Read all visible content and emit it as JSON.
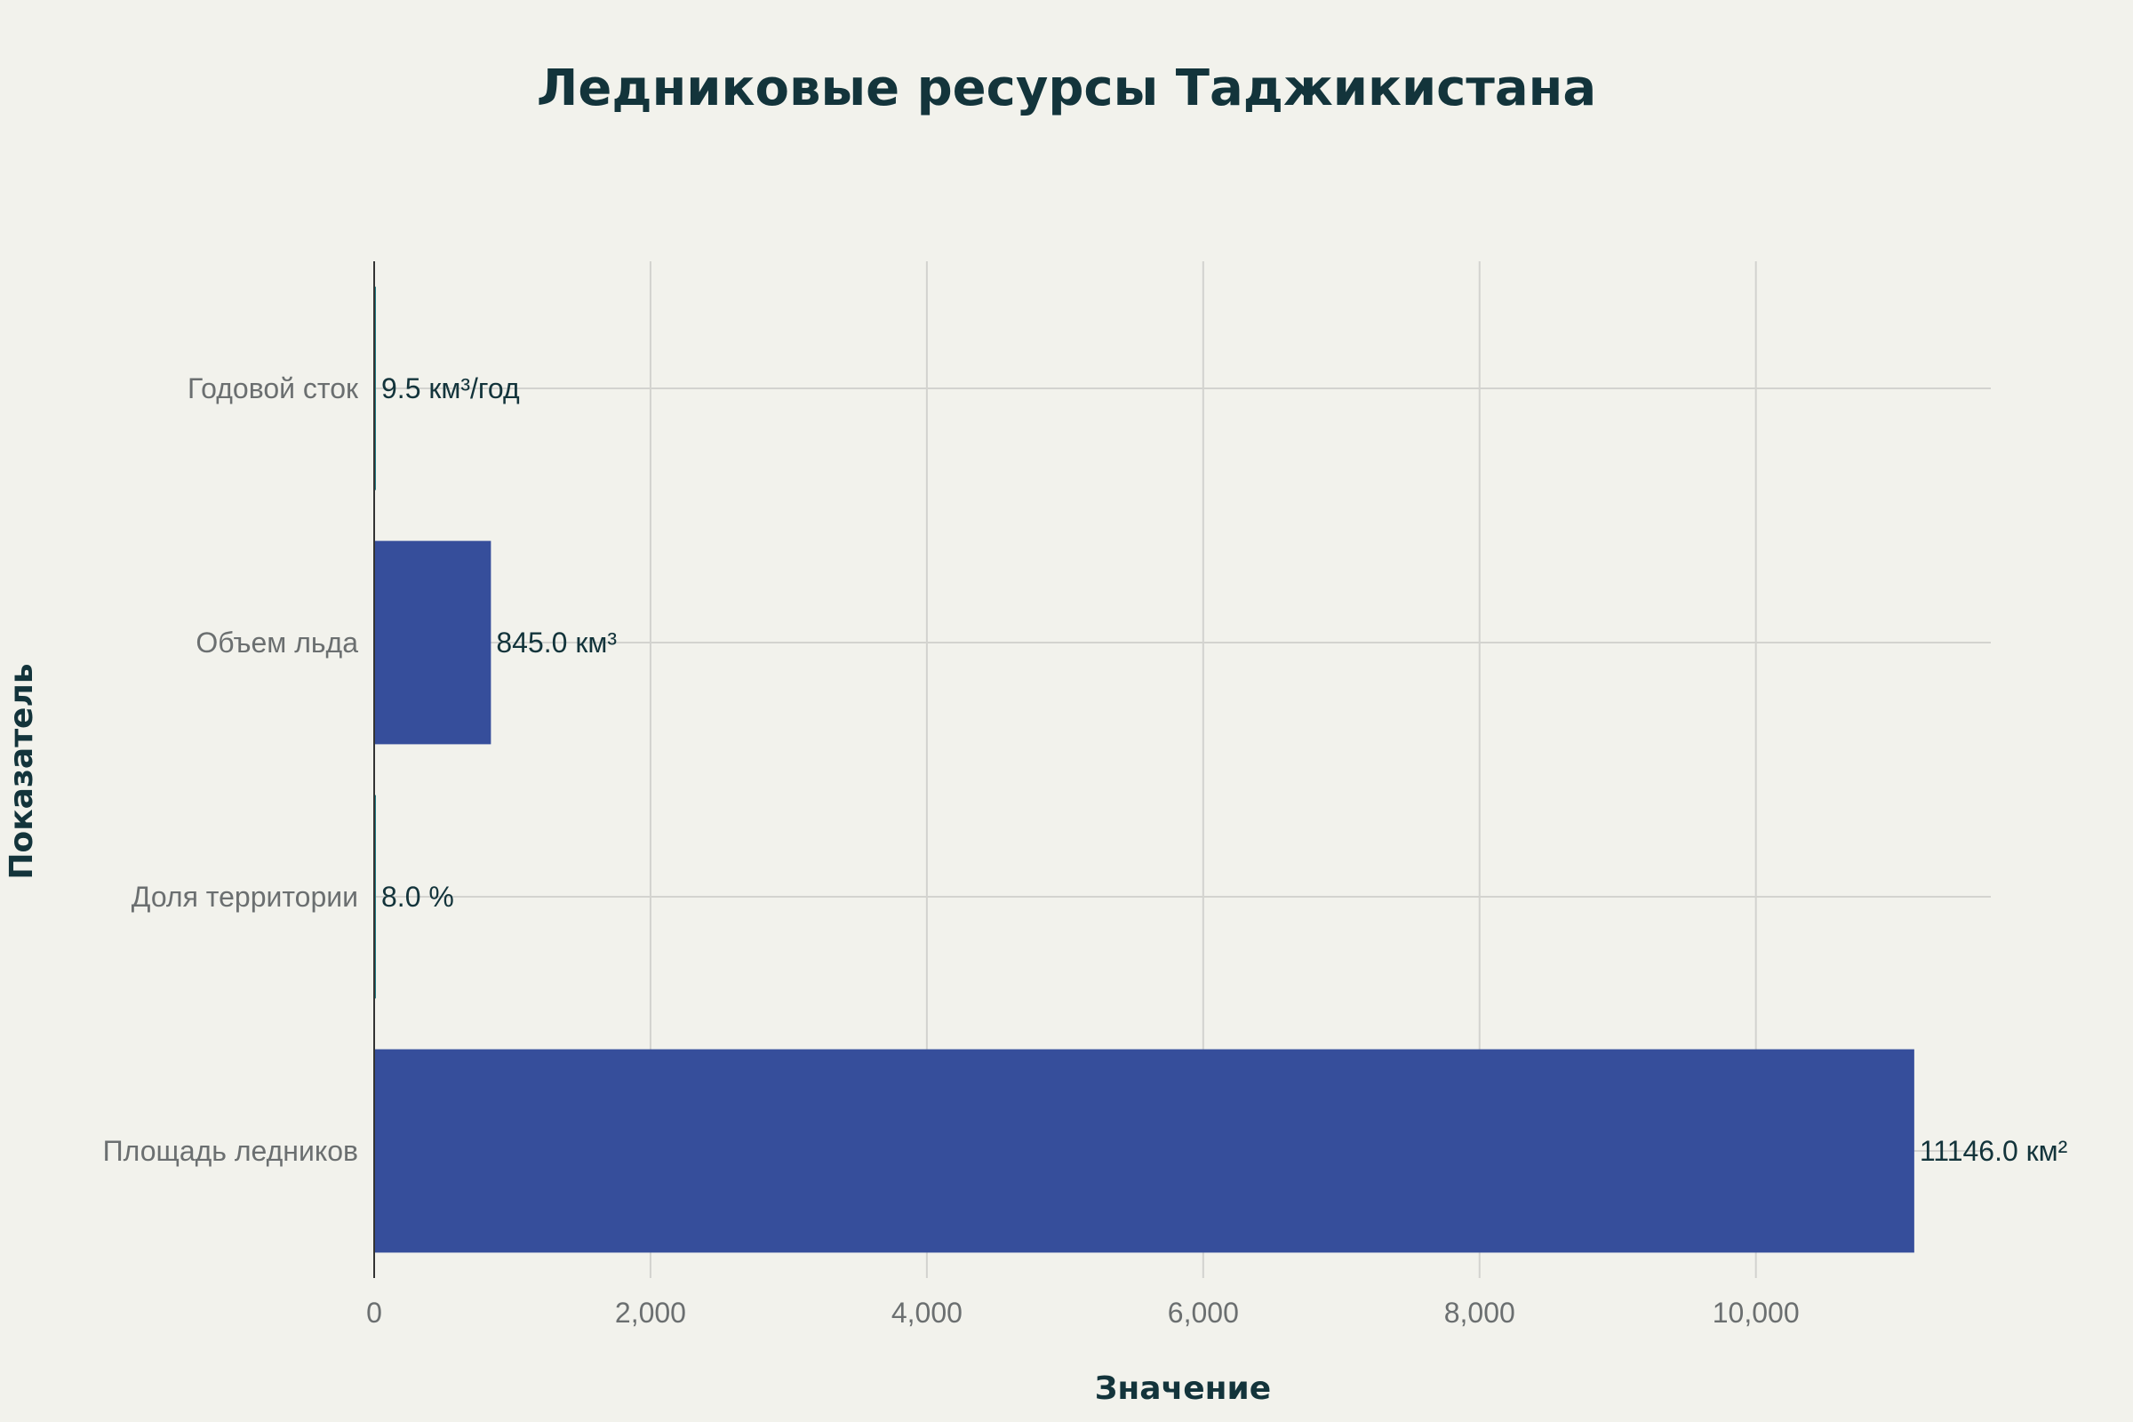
{
  "chart_data": {
    "type": "bar",
    "orientation": "horizontal",
    "title": "Ледниковые ресурсы Таджикистана",
    "xlabel": "Значение",
    "ylabel": "Показатель",
    "categories": [
      "Площадь ледников",
      "Доля территории",
      "Объем льда",
      "Годовой сток"
    ],
    "values": [
      11146.0,
      8.0,
      845.0,
      9.5
    ],
    "data_labels": [
      "11146.0 км²",
      "8.0 %",
      "845.0 км³",
      "9.5 км³/год"
    ],
    "colors": [
      "#364e9b",
      "#1e7a80",
      "#364e9b",
      "#1e7a80"
    ],
    "xlim": [
      0,
      11700
    ],
    "x_ticks": [
      0,
      2000,
      4000,
      6000,
      8000,
      10000
    ],
    "x_tick_labels": [
      "0",
      "2,000",
      "4,000",
      "6,000",
      "8,000",
      "10,000"
    ],
    "grid": true,
    "background": "#f2f2ec"
  }
}
